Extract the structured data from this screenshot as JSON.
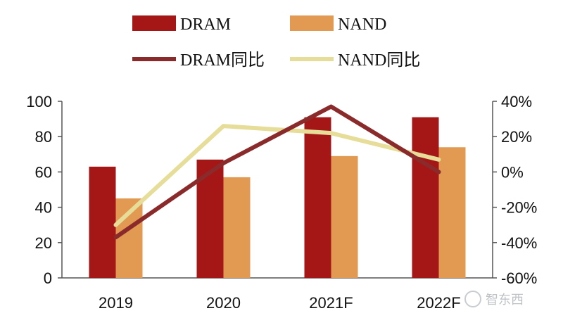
{
  "chart_data": {
    "type": "bar",
    "categories": [
      "2019",
      "2020",
      "2021F",
      "2022F"
    ],
    "series": [
      {
        "name": "DRAM",
        "kind": "bar",
        "axis": "left",
        "color": "#a51616",
        "values": [
          63,
          67,
          91,
          91
        ]
      },
      {
        "name": "NAND",
        "kind": "bar",
        "axis": "left",
        "color": "#e29a52",
        "values": [
          45,
          57,
          69,
          74
        ]
      },
      {
        "name": "DRAM同比",
        "kind": "line",
        "axis": "right",
        "color": "#8b2a2a",
        "values": [
          -37,
          5,
          37,
          0
        ]
      },
      {
        "name": "NAND同比",
        "kind": "line",
        "axis": "right",
        "color": "#e6dd99",
        "values": [
          -30,
          26,
          22,
          7
        ]
      }
    ],
    "left_axis": {
      "min": 0,
      "max": 100,
      "ticks": [
        0,
        20,
        40,
        60,
        80,
        100
      ],
      "tick_labels": [
        "0",
        "20",
        "40",
        "60",
        "80",
        "100"
      ]
    },
    "right_axis": {
      "min": -60,
      "max": 40,
      "ticks": [
        -60,
        -40,
        -20,
        0,
        20,
        40
      ],
      "tick_labels": [
        "-60%",
        "-40%",
        "-20%",
        "0%",
        "20%",
        "40%"
      ]
    },
    "legend": {
      "placement": "top-center",
      "labels": [
        "DRAM",
        "NAND",
        "DRAM同比",
        "NAND同比"
      ]
    },
    "grid": false
  },
  "watermark": "智东西"
}
